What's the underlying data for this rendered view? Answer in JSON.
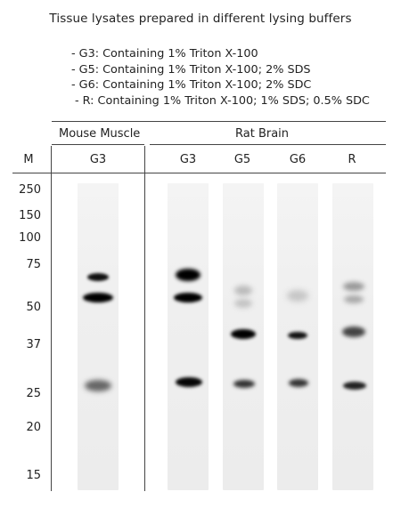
{
  "title": "Tissue lysates prepared in different lysing buffers",
  "legend": [
    "- G3: Containing 1% Triton X-100",
    "- G5: Containing 1% Triton X-100; 2% SDS",
    "- G6: Containing 1% Triton X-100; 2% SDC",
    "- R: Containing 1% Triton X-100; 1% SDS; 0.5% SDC"
  ],
  "groups": {
    "mouse": "Mouse Muscle",
    "rat": "Rat Brain"
  },
  "marker_header": "M",
  "lanes": [
    "G3",
    "G3",
    "G5",
    "G6",
    "R"
  ],
  "markers": [
    "250",
    "150",
    "100",
    "75",
    "50",
    "37",
    "25",
    "20",
    "15"
  ]
}
